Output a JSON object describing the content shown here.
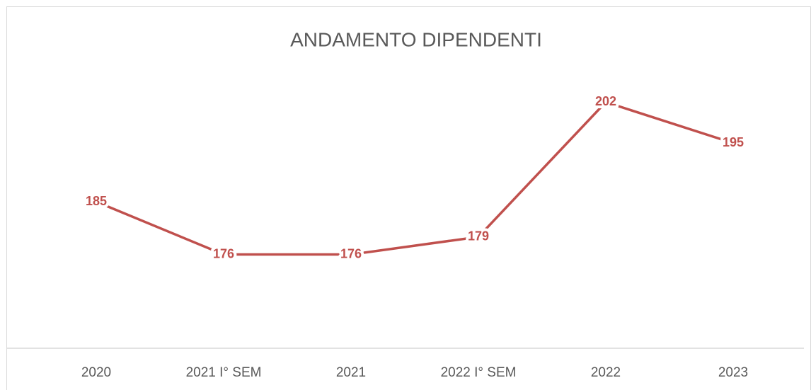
{
  "chart_data": {
    "type": "line",
    "title": "ANDAMENTO DIPENDENTI",
    "categories": [
      "2020",
      "2021 I° SEM",
      "2021",
      "2022 I° SEM",
      "2022",
      "2023"
    ],
    "values": [
      185,
      176,
      176,
      179,
      202,
      195
    ],
    "color": "#c0504d",
    "ylim": [
      160,
      210
    ]
  }
}
